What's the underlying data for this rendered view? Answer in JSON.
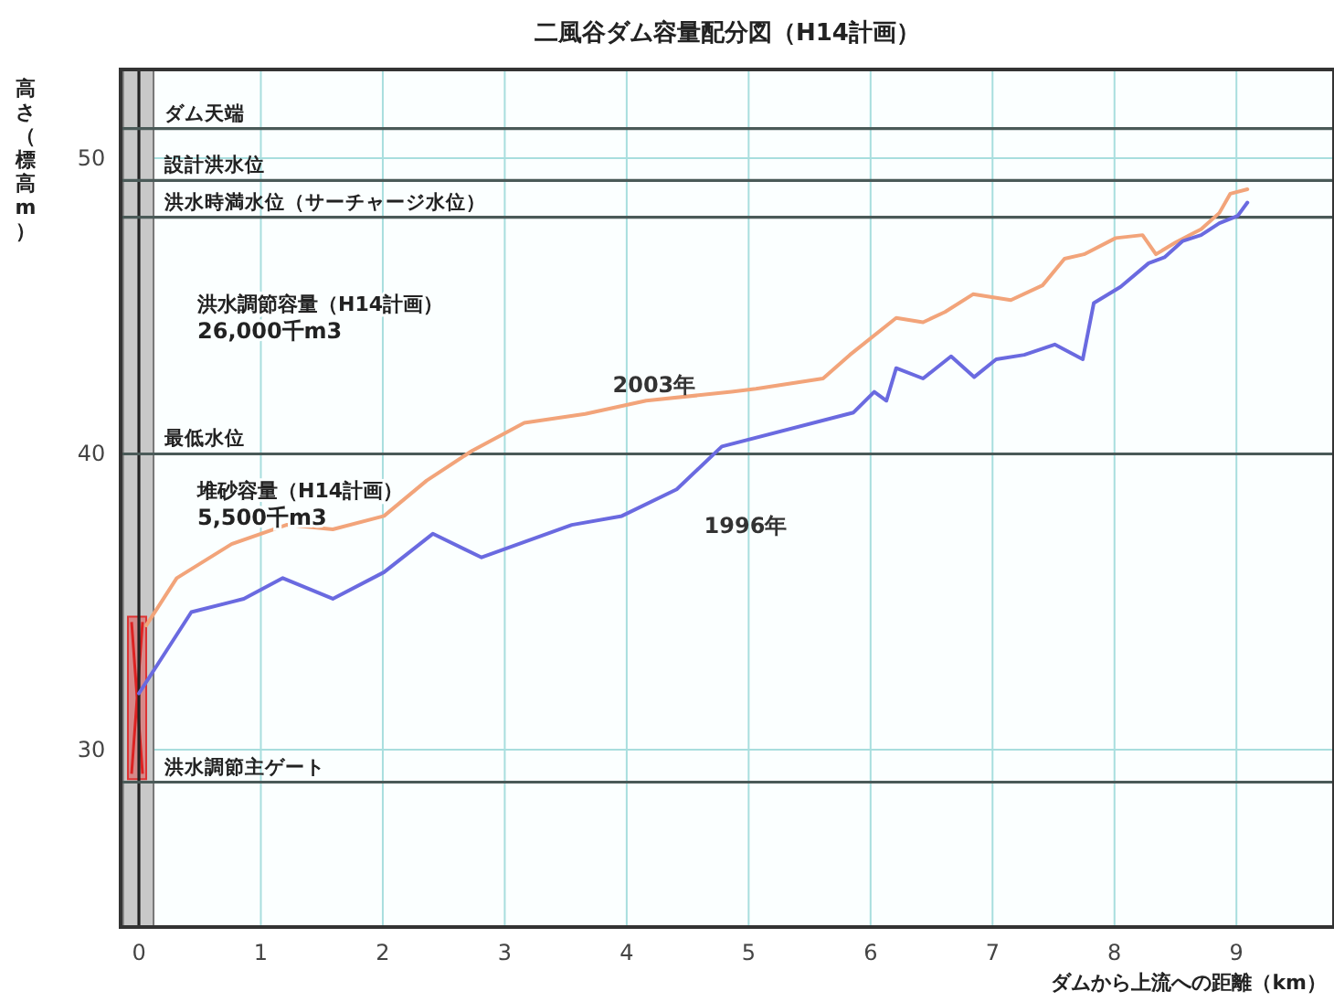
{
  "chart_data": {
    "type": "line",
    "title": "二風谷ダム容量配分図（H14計画）",
    "xlabel": "ダムから上流への距離（km）",
    "ylabel": "高さ（標高m）",
    "xlim": [
      -0.15,
      9.8
    ],
    "ylim": [
      24,
      53
    ],
    "xticks": [
      0,
      1,
      2,
      3,
      4,
      5,
      6,
      7,
      8,
      9
    ],
    "yticks": [
      30,
      40,
      50
    ],
    "grid": true,
    "line_style": "solid",
    "marker": "none",
    "series": [
      {
        "name": "2003年",
        "color": "#f2a47a",
        "x": [
          0.06,
          0.31,
          0.76,
          1.21,
          1.59,
          2.01,
          2.36,
          2.73,
          3.16,
          3.66,
          4.16,
          4.86,
          5.06,
          5.61,
          5.83,
          6.21,
          6.43,
          6.61,
          6.84,
          7.15,
          7.41,
          7.59,
          7.75,
          8.01,
          8.23,
          8.34,
          8.5,
          8.71,
          8.86,
          8.95,
          9.09
        ],
        "values": [
          34.2,
          35.8,
          36.95,
          37.6,
          37.45,
          37.9,
          39.1,
          40.1,
          41.05,
          41.35,
          41.8,
          42.1,
          42.2,
          42.55,
          43.35,
          44.6,
          44.45,
          44.8,
          45.4,
          45.2,
          45.7,
          46.6,
          46.75,
          47.3,
          47.4,
          46.75,
          47.15,
          47.6,
          48.15,
          48.8,
          48.95
        ]
      },
      {
        "name": "1996年",
        "color": "#6a6ae0",
        "x": [
          0,
          0.43,
          0.86,
          1.18,
          1.59,
          2.01,
          2.41,
          2.81,
          3.55,
          3.96,
          4.41,
          4.78,
          5.86,
          6.03,
          6.13,
          6.21,
          6.43,
          6.66,
          6.85,
          7.03,
          7.26,
          7.51,
          7.74,
          7.83,
          8.05,
          8.28,
          8.41,
          8.56,
          8.71,
          8.86,
          9.01,
          9.09
        ],
        "values": [
          31.9,
          34.65,
          35.1,
          35.8,
          35.1,
          36.0,
          37.3,
          36.5,
          37.6,
          37.9,
          38.8,
          40.25,
          41.4,
          42.1,
          41.8,
          42.9,
          42.55,
          43.3,
          42.6,
          43.2,
          43.35,
          43.7,
          43.2,
          45.1,
          45.65,
          46.45,
          46.65,
          47.2,
          47.4,
          47.8,
          48.05,
          48.5
        ]
      }
    ],
    "bands": [
      {
        "axis": "x",
        "from": -0.13,
        "to": 0.12,
        "color": "#c8c8c8"
      }
    ],
    "ref_lines": [
      {
        "axis": "x",
        "value": 0,
        "color": "#222222"
      },
      {
        "axis": "y",
        "value": 51.0,
        "label": "ダム天端",
        "color": "#4a5a58"
      },
      {
        "axis": "y",
        "value": 49.25,
        "label": "設計洪水位",
        "color": "#4a5a58"
      },
      {
        "axis": "y",
        "value": 48.0,
        "label": "洪水時満水位（サーチャージ水位）",
        "color": "#4a5a58"
      },
      {
        "axis": "y",
        "value": 40.0,
        "label": "最低水位",
        "color": "#4a5a58"
      },
      {
        "axis": "y",
        "value": 28.9,
        "label": "洪水調節主ゲート",
        "color": "#4a5a58"
      }
    ],
    "annotations": [
      "洪水調節容量（H14計画）\n26,000千m3",
      "堆砂容量（H14計画）\n5,500千m3"
    ]
  }
}
